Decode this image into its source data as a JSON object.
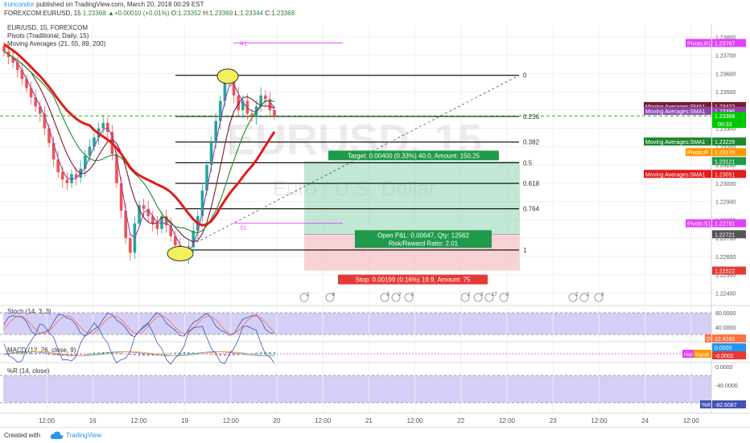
{
  "header": {
    "author": "lroncondor",
    "published": " published on TradingView.com, March 20, 2018 00:29 EST",
    "symbol_line": "FOREXCOM:EURUSD, 15",
    "last": "1.23368",
    "change": "+0.00010 (+0.01%)",
    "o_label": "O:",
    "o": "1.23352",
    "h_label": "H:",
    "h": "1.23369",
    "l_label": "L:",
    "l": "1.23344",
    "c_label": "C:",
    "c": "1.23368"
  },
  "legend": {
    "title": "EUR/USD, 15, FOREXCOM",
    "pivots": "Pivots (Traditional, Daily, 15)",
    "ma": "Moving Averages (21, 55, 89, 200)"
  },
  "watermark": {
    "symbol": "EURUSD, 15",
    "name": "Euro / U.S. Dollar"
  },
  "footer": {
    "created": "Created with",
    "brand": "TradingView"
  },
  "colors": {
    "up": "#26a69a",
    "down": "#ef5350",
    "ma21": "#8e44ad",
    "ma55": "#7b1c2e",
    "ma89": "#1e8a2e",
    "ma200": "#e31b1b",
    "pivot": "#e040fb",
    "current": "#00c800"
  },
  "chart_data": [
    {
      "type": "candlestick",
      "title": "EUR/USD, 15, FOREXCOM",
      "ylim": [
        1.2234,
        1.2387
      ],
      "y_ticks": [
        1.238,
        1.237,
        1.236,
        1.235,
        1.234,
        1.233,
        1.232,
        1.231,
        1.23,
        1.229,
        1.228,
        1.227,
        1.226,
        1.225,
        1.224
      ],
      "y_tick_labels": [
        "1.23800",
        "1.23700",
        "1.23600",
        "1.23500",
        "1.23400",
        "1.23300",
        "1.23200",
        "1.23100",
        "1.23000",
        "1.22900",
        "1.22800",
        "1.22700",
        "1.22600",
        "1.22500",
        "1.22400"
      ],
      "x_tick_labels": [
        "12:00",
        "16",
        "12:00",
        "19",
        "12:00",
        "20",
        "12:00",
        "21",
        "12:00",
        "22",
        "12:00",
        "23",
        "12:00",
        "24",
        "12:00"
      ],
      "series_close": [
        1.2372,
        1.2369,
        1.2366,
        1.2362,
        1.2357,
        1.2352,
        1.2347,
        1.2342,
        1.2338,
        1.233,
        1.2322,
        1.2313,
        1.2306,
        1.2302,
        1.23,
        1.2305,
        1.2303,
        1.2308,
        1.2315,
        1.232,
        1.2325,
        1.233,
        1.2333,
        1.2328,
        1.2316,
        1.23,
        1.2285,
        1.227,
        1.2262,
        1.2278,
        1.2288,
        1.2286,
        1.2282,
        1.2278,
        1.2275,
        1.2282,
        1.2277,
        1.2271,
        1.2266,
        1.2263,
        1.226,
        1.2265,
        1.2274,
        1.2282,
        1.2296,
        1.231,
        1.2322,
        1.2334,
        1.2345,
        1.2356,
        1.2359,
        1.2348,
        1.234,
        1.2345,
        1.2338,
        1.2336,
        1.2342,
        1.2348,
        1.2346,
        1.234,
        1.2337
      ],
      "moving_averages": [
        {
          "name": "Moving Averages:SMA1",
          "value": "1.23422",
          "color": "#7b1c2e"
        },
        {
          "name": "Moving Averages:SMA1",
          "value": "1.23396",
          "color": "#8e44ad"
        },
        {
          "name": "Moving Averages:SMA1",
          "value": "1.23228",
          "color": "#1e8a2e"
        },
        {
          "name": "Moving Averages:SMA1",
          "value": "1.23051",
          "color": "#e31b1b"
        }
      ],
      "pivots": [
        {
          "name": "R1",
          "label": "Pivots:R1",
          "value": "1.23767"
        },
        {
          "name": "P",
          "label": "Pivots:P",
          "value": "1.23170"
        },
        {
          "name": "S1",
          "label": "Pivots:S1",
          "value": "1.22781"
        }
      ],
      "price_tags": [
        {
          "value": "1.23368",
          "sub": "00:33"
        },
        {
          "value": "1.23121"
        },
        {
          "value": "1.22721"
        },
        {
          "value": "1.22522"
        }
      ],
      "fibonacci": [
        {
          "level": "0",
          "price": 1.2359
        },
        {
          "level": "0.236",
          "price": 1.23365
        },
        {
          "level": "0.382",
          "price": 1.23225
        },
        {
          "level": "0.5",
          "price": 1.23112
        },
        {
          "level": "0.618",
          "price": 1.22999
        },
        {
          "level": "0.764",
          "price": 1.2286
        },
        {
          "level": "1",
          "price": 1.22635
        }
      ],
      "position": {
        "entry": 1.22721,
        "target": 1.23121,
        "stop": 1.22522,
        "target_label": "Target: 0.00400 (0.33%) 40.0, Amount: 150.25",
        "stop_label": "Stop: 0.00199 (0.16%) 19.9, Amount: 75",
        "pnl_label": "Open P&L: 0.00647, Qty: 12562",
        "rr_label": "Risk/Reward Ratio: 2.01"
      },
      "events": [
        "2",
        "6",
        "5",
        "2",
        "3",
        "2",
        "3",
        "27",
        "3",
        "2",
        "2",
        "3"
      ]
    },
    {
      "type": "line",
      "title": "Stoch (14, 3, 3)",
      "ylim": [
        0,
        100
      ],
      "y_tick_labels": [
        "80.0000",
        "40.0000"
      ],
      "last_label": "D",
      "last_value": "12.4162"
    },
    {
      "type": "line",
      "title": "MACD (12, 26, close, 9)",
      "y_tick_labels": [
        "0.0000"
      ],
      "tags": [
        {
          "label": "Hist",
          "value": ""
        },
        {
          "label": "Signal",
          "value": "-0.0001"
        }
      ]
    },
    {
      "type": "line",
      "title": "%R (14, close)",
      "ylim": [
        -100,
        0
      ],
      "y_tick_labels": [
        "0.0000",
        "-40.0000"
      ],
      "last_label": "%R",
      "last_value": "-82.6087"
    }
  ]
}
